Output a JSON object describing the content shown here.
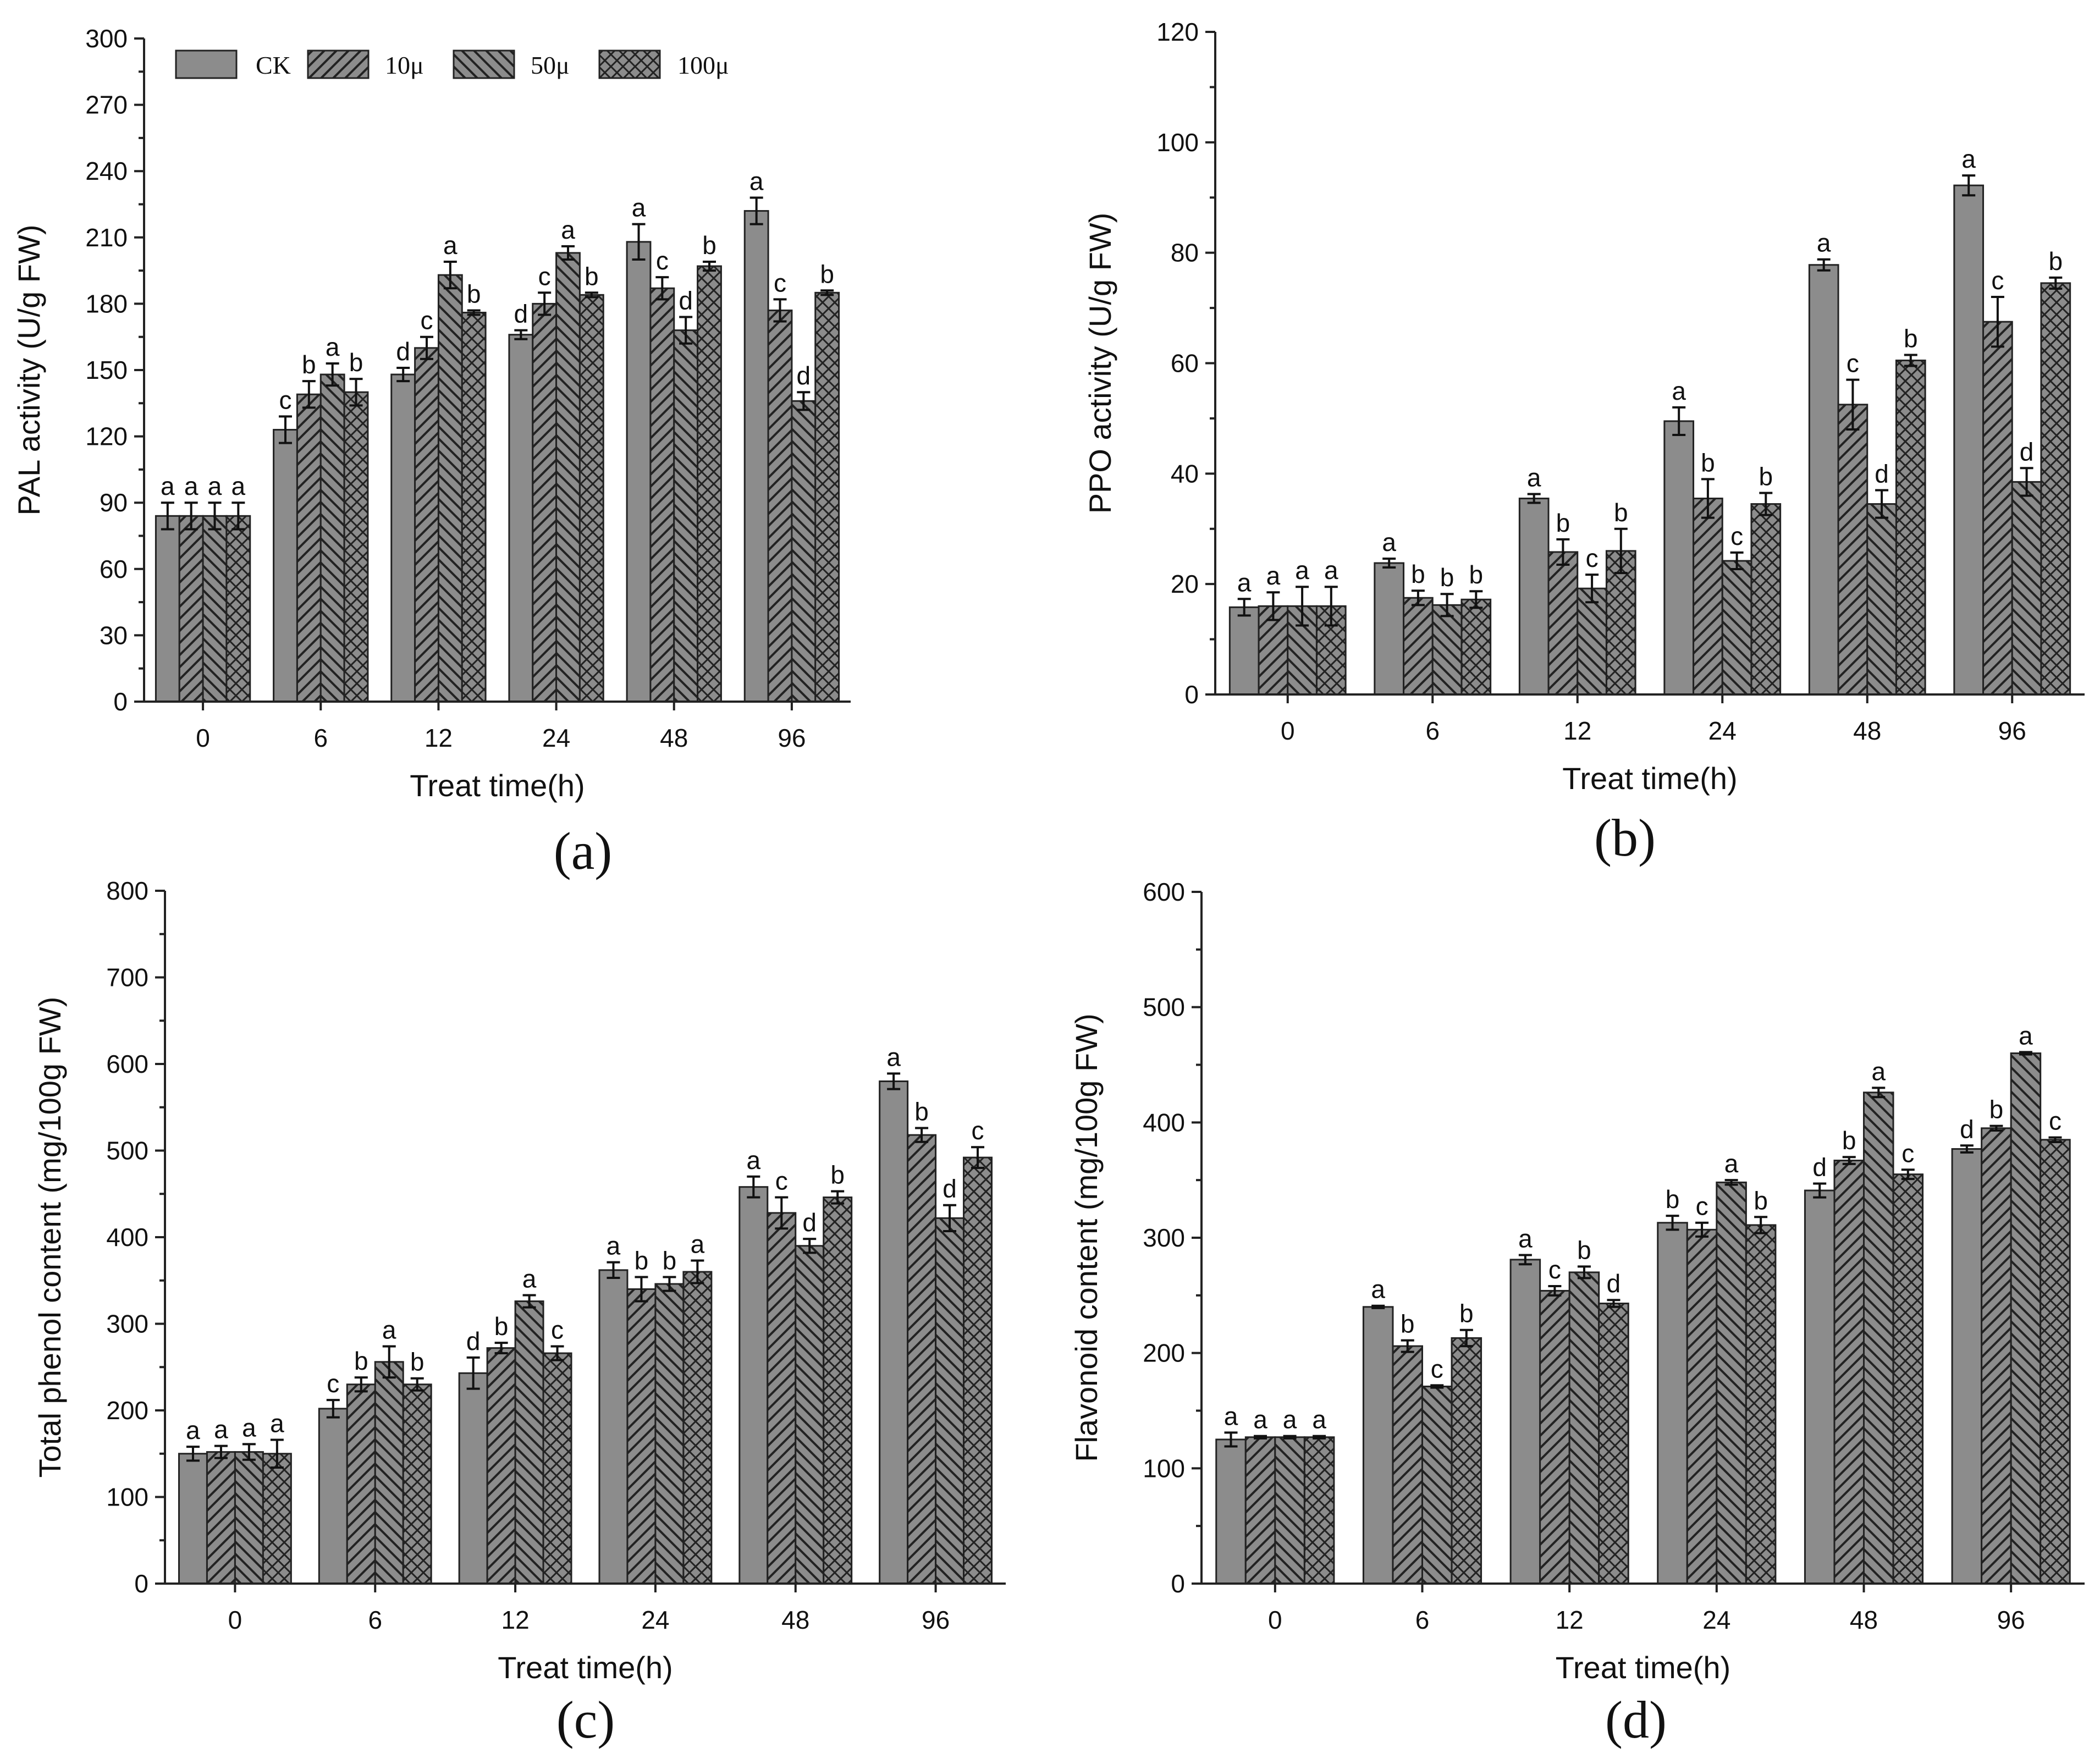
{
  "legend": {
    "series": [
      "CK",
      "10μ",
      "50μ",
      "100μ"
    ],
    "patterns": [
      "solid",
      "diag-up",
      "diag-down",
      "crosshatch"
    ]
  },
  "colors": {
    "bar_fill": "#8c8c8c",
    "ink": "#222222",
    "background": "#ffffff"
  },
  "chart_data": [
    {
      "id": "a",
      "type": "bar",
      "panel_label": "(a)",
      "xlabel": "Treat time(h)",
      "ylabel": "PAL activity (U/g FW)",
      "categories": [
        "0",
        "6",
        "12",
        "24",
        "48",
        "96"
      ],
      "ylim": [
        0,
        300
      ],
      "yticks": [
        0,
        30,
        60,
        90,
        120,
        150,
        180,
        210,
        240,
        270,
        300
      ],
      "legend_position": "top-left",
      "series": [
        {
          "name": "CK",
          "values": [
            84,
            123,
            148,
            166,
            208,
            222
          ],
          "errors": [
            6,
            6,
            3,
            2,
            8,
            6
          ],
          "letters": [
            "a",
            "c",
            "d",
            "d",
            "a",
            "a"
          ]
        },
        {
          "name": "10μ",
          "values": [
            84,
            139,
            160,
            180,
            187,
            177
          ],
          "errors": [
            6,
            6,
            5,
            5,
            5,
            5
          ],
          "letters": [
            "a",
            "b",
            "c",
            "c",
            "c",
            "c"
          ]
        },
        {
          "name": "50μ",
          "values": [
            84,
            148,
            193,
            203,
            168,
            136
          ],
          "errors": [
            6,
            5,
            6,
            3,
            6,
            4
          ],
          "letters": [
            "a",
            "a",
            "a",
            "a",
            "d",
            "d"
          ]
        },
        {
          "name": "100μ",
          "values": [
            84,
            140,
            176,
            184,
            197,
            185
          ],
          "errors": [
            6,
            6,
            1,
            1,
            2,
            1
          ],
          "letters": [
            "a",
            "b",
            "b",
            "b",
            "b",
            "b"
          ]
        }
      ]
    },
    {
      "id": "b",
      "type": "bar",
      "panel_label": "(b)",
      "xlabel": "Treat time(h)",
      "ylabel": "PPO activity (U/g FW)",
      "categories": [
        "0",
        "6",
        "12",
        "24",
        "48",
        "96"
      ],
      "ylim": [
        0,
        120
      ],
      "yticks": [
        0,
        20,
        40,
        60,
        80,
        100,
        120
      ],
      "series": [
        {
          "name": "CK",
          "values": [
            15.8,
            23.8,
            35.5,
            49.5,
            77.8,
            92.2
          ],
          "errors": [
            1.5,
            0.8,
            0.8,
            2.5,
            1,
            1.8
          ],
          "letters": [
            "a",
            "a",
            "a",
            "a",
            "a",
            "a"
          ]
        },
        {
          "name": "10μ",
          "values": [
            16,
            17.5,
            25.8,
            35.5,
            52.5,
            67.5
          ],
          "errors": [
            2.5,
            1.3,
            2.3,
            3.5,
            4.5,
            4.5
          ],
          "letters": [
            "a",
            "b",
            "b",
            "b",
            "c",
            "c"
          ]
        },
        {
          "name": "50μ",
          "values": [
            16,
            16.2,
            19.2,
            24.2,
            34.5,
            38.5
          ],
          "errors": [
            3.5,
            2,
            2.5,
            1.5,
            2.5,
            2.5
          ],
          "letters": [
            "a",
            "b",
            "c",
            "c",
            "d",
            "d"
          ]
        },
        {
          "name": "100μ",
          "values": [
            16,
            17.2,
            26,
            34.5,
            60.5,
            74.5
          ],
          "errors": [
            3.5,
            1.5,
            4,
            2,
            1,
            1
          ],
          "letters": [
            "a",
            "b",
            "b",
            "b",
            "b",
            "b"
          ]
        }
      ]
    },
    {
      "id": "c",
      "type": "bar",
      "panel_label": "(c)",
      "xlabel": "Treat time(h)",
      "ylabel": "Total phenol content (mg/100g FW)",
      "categories": [
        "0",
        "6",
        "12",
        "24",
        "48",
        "96"
      ],
      "ylim": [
        0,
        800
      ],
      "yticks": [
        0,
        100,
        200,
        300,
        400,
        500,
        600,
        700,
        800
      ],
      "series": [
        {
          "name": "CK",
          "values": [
            150,
            202,
            243,
            362,
            458,
            580
          ],
          "errors": [
            8,
            10,
            18,
            9,
            12,
            9
          ],
          "letters": [
            "a",
            "c",
            "d",
            "a",
            "a",
            "a"
          ]
        },
        {
          "name": "10μ",
          "values": [
            152,
            230,
            272,
            340,
            428,
            518
          ],
          "errors": [
            7,
            8,
            6,
            14,
            18,
            8
          ],
          "letters": [
            "a",
            "b",
            "b",
            "b",
            "c",
            "b"
          ]
        },
        {
          "name": "50μ",
          "values": [
            152,
            256,
            326,
            346,
            390,
            422
          ],
          "errors": [
            9,
            18,
            7,
            8,
            8,
            15
          ],
          "letters": [
            "a",
            "a",
            "a",
            "b",
            "d",
            "d"
          ]
        },
        {
          "name": "100μ",
          "values": [
            150,
            230,
            266,
            360,
            446,
            492
          ],
          "errors": [
            16,
            7,
            8,
            13,
            7,
            12
          ],
          "letters": [
            "a",
            "b",
            "c",
            "a",
            "b",
            "c"
          ]
        }
      ]
    },
    {
      "id": "d",
      "type": "bar",
      "panel_label": "(d)",
      "xlabel": "Treat time(h)",
      "ylabel": "Flavonoid content (mg/100g FW)",
      "categories": [
        "0",
        "6",
        "12",
        "24",
        "48",
        "96"
      ],
      "ylim": [
        0,
        600
      ],
      "yticks": [
        0,
        100,
        200,
        300,
        400,
        500,
        600
      ],
      "series": [
        {
          "name": "CK",
          "values": [
            125,
            240,
            281,
            313,
            341,
            377
          ],
          "errors": [
            6,
            1,
            4,
            6,
            6,
            3
          ],
          "letters": [
            "a",
            "a",
            "a",
            "b",
            "d",
            "d"
          ]
        },
        {
          "name": "10μ",
          "values": [
            127,
            206,
            254,
            307,
            367,
            395
          ],
          "errors": [
            1,
            5,
            4,
            6,
            3,
            2
          ],
          "letters": [
            "a",
            "b",
            "c",
            "c",
            "b",
            "b"
          ]
        },
        {
          "name": "50μ",
          "values": [
            127,
            171,
            270,
            348,
            426,
            460
          ],
          "errors": [
            1,
            1,
            5,
            2,
            4,
            1
          ],
          "letters": [
            "a",
            "c",
            "b",
            "a",
            "a",
            "a"
          ]
        },
        {
          "name": "100μ",
          "values": [
            127,
            213,
            243,
            311,
            355,
            385
          ],
          "errors": [
            1,
            7,
            3,
            7,
            4,
            2
          ],
          "letters": [
            "a",
            "b",
            "d",
            "b",
            "c",
            "c"
          ]
        }
      ]
    }
  ]
}
